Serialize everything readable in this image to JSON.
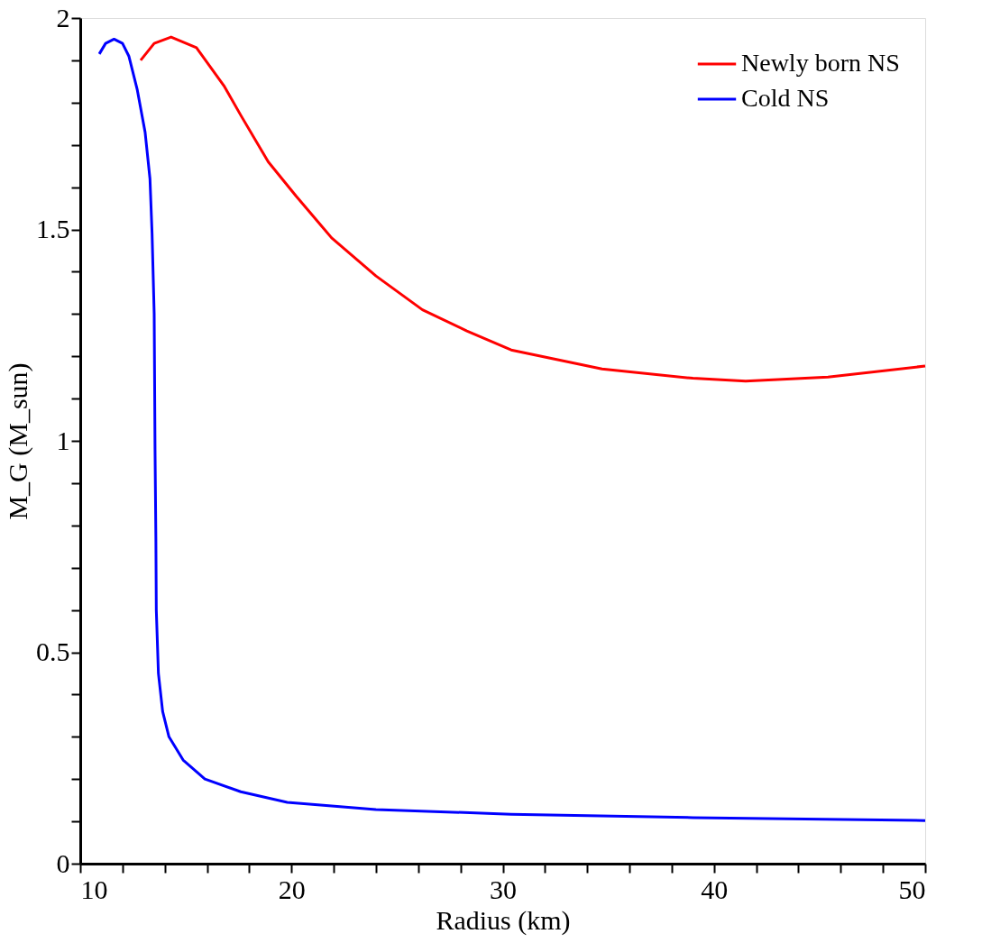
{
  "chart_data": {
    "type": "line",
    "xlabel": "Radius (km)",
    "ylabel": "M_G (M_sun)",
    "xlim": [
      10,
      50
    ],
    "ylim": [
      0,
      2
    ],
    "xticks": [
      10,
      {
        "value": 12,
        "label": null
      },
      {
        "value": 14,
        "label": null
      },
      {
        "value": 16,
        "label": null
      },
      {
        "value": 18,
        "label": null
      },
      20,
      {
        "value": 22,
        "label": null
      },
      {
        "value": 24,
        "label": null
      },
      {
        "value": 26,
        "label": null
      },
      {
        "value": 28,
        "label": null
      },
      30,
      {
        "value": 32,
        "label": null
      },
      {
        "value": 34,
        "label": null
      },
      {
        "value": 36,
        "label": null
      },
      {
        "value": 38,
        "label": null
      },
      40,
      {
        "value": 42,
        "label": null
      },
      {
        "value": 44,
        "label": null
      },
      {
        "value": 46,
        "label": null
      },
      {
        "value": 48,
        "label": null
      },
      50
    ],
    "yticks": [
      0,
      {
        "value": 0.1,
        "label": null
      },
      {
        "value": 0.2,
        "label": null
      },
      {
        "value": 0.3,
        "label": null
      },
      {
        "value": 0.4,
        "label": null
      },
      0.5,
      {
        "value": 0.6,
        "label": null
      },
      {
        "value": 0.7,
        "label": null
      },
      {
        "value": 0.8,
        "label": null
      },
      {
        "value": 0.9,
        "label": null
      },
      1,
      {
        "value": 1.1,
        "label": null
      },
      {
        "value": 1.2,
        "label": null
      },
      {
        "value": 1.3,
        "label": null
      },
      {
        "value": 1.4,
        "label": null
      },
      1.5,
      {
        "value": 1.6,
        "label": null
      },
      {
        "value": 1.7,
        "label": null
      },
      {
        "value": 1.8,
        "label": null
      },
      {
        "value": 1.9,
        "label": null
      },
      2
    ],
    "grid": false,
    "legend": "top right",
    "marker": "none",
    "line_style": "solid",
    "series": [
      {
        "name": "Newly born NS",
        "color": "#ff0000",
        "x": [
          12.86,
          13.5,
          14.3,
          15.5,
          16.8,
          17.6,
          18.9,
          20.2,
          21.9,
          24.0,
          26.2,
          28.3,
          30.4,
          34.7,
          39.0,
          41.5,
          45.4,
          50
        ],
        "values": [
          1.9,
          1.94,
          1.955,
          1.93,
          1.84,
          1.77,
          1.66,
          1.58,
          1.48,
          1.39,
          1.31,
          1.26,
          1.215,
          1.17,
          1.148,
          1.141,
          1.151,
          1.177
        ]
      },
      {
        "name": "Cold NS",
        "color": "#0000ff",
        "x": [
          10.9,
          11.2,
          11.6,
          12.0,
          12.3,
          12.7,
          13.07,
          13.3,
          13.4,
          13.5,
          13.54,
          13.58,
          13.6,
          13.7,
          13.9,
          14.2,
          14.87,
          15.9,
          17.6,
          19.8,
          24.0,
          30.4,
          39.0,
          50
        ],
        "values": [
          1.915,
          1.94,
          1.95,
          1.94,
          1.91,
          1.83,
          1.73,
          1.62,
          1.49,
          1.3,
          0.98,
          0.77,
          0.6,
          0.45,
          0.36,
          0.3,
          0.245,
          0.2,
          0.17,
          0.145,
          0.128,
          0.117,
          0.109,
          0.102
        ]
      }
    ]
  }
}
